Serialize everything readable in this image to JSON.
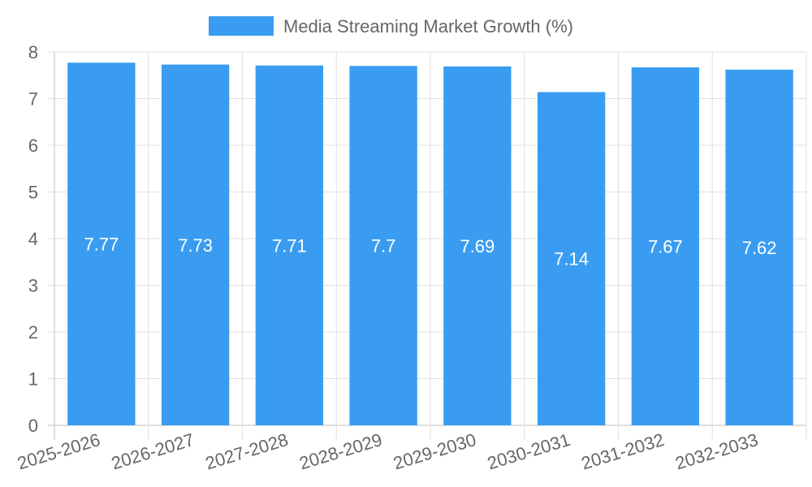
{
  "chart_data": {
    "type": "bar",
    "title": "",
    "xlabel": "",
    "ylabel": "",
    "categories": [
      "2025-2026",
      "2026-2027",
      "2027-2028",
      "2028-2029",
      "2029-2030",
      "2030-2031",
      "2031-2032",
      "2032-2033"
    ],
    "series": [
      {
        "name": "Media Streaming Market Growth (%)",
        "values": [
          7.77,
          7.73,
          7.71,
          7.7,
          7.69,
          7.14,
          7.67,
          7.62
        ],
        "color": "#3a9cf1"
      }
    ],
    "ylim": [
      0,
      8
    ],
    "yticks": [
      0,
      1,
      2,
      3,
      4,
      5,
      6,
      7,
      8
    ],
    "grid": true,
    "legend_position": "top-center",
    "data_labels": [
      "7.77",
      "7.73",
      "7.71",
      "7.7",
      "7.69",
      "7.14",
      "7.67",
      "7.62"
    ],
    "data_label_color": "#ffffff"
  },
  "colors": {
    "bar": "#3a9cf1",
    "grid": "#e0e0e0",
    "axis": "#bfbfbf",
    "text": "#666666"
  }
}
